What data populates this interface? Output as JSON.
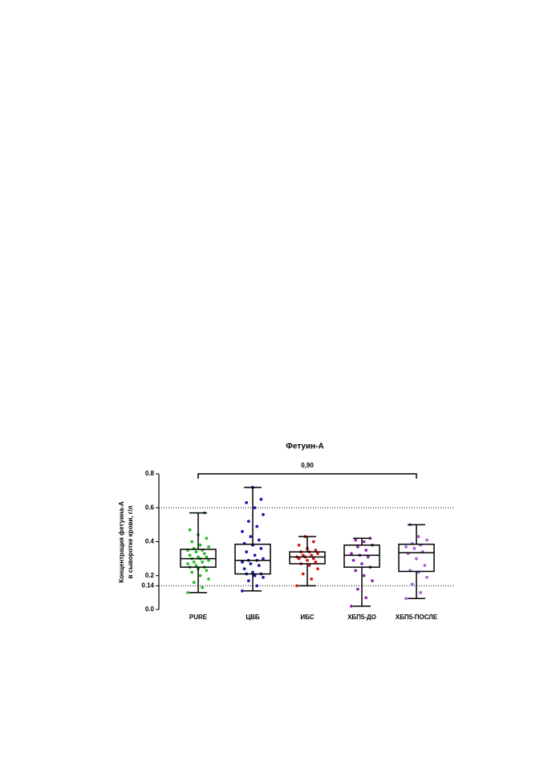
{
  "chart_data": {
    "type": "box",
    "title": "Фетуин-А",
    "y_label": [
      "Концентрация фетуина-А",
      "в сыворотке крови, г/л"
    ],
    "categories": [
      "PURE",
      "ЦВБ",
      "ИБС",
      "ХБП5-ДО",
      "ХБП5-ПОСЛЕ"
    ],
    "boxes": [
      {
        "color": "#2db82d",
        "min": 0.1,
        "q1": 0.25,
        "median": 0.3,
        "q3": 0.355,
        "max": 0.57,
        "points": [
          0.1,
          0.13,
          0.16,
          0.18,
          0.2,
          0.22,
          0.23,
          0.24,
          0.25,
          0.25,
          0.26,
          0.27,
          0.28,
          0.28,
          0.29,
          0.3,
          0.3,
          0.31,
          0.31,
          0.32,
          0.33,
          0.34,
          0.35,
          0.35,
          0.36,
          0.37,
          0.38,
          0.4,
          0.42,
          0.44,
          0.47,
          0.57
        ]
      },
      {
        "color": "#1a1aa8",
        "min": 0.11,
        "q1": 0.21,
        "median": 0.29,
        "q3": 0.385,
        "max": 0.72,
        "points": [
          0.11,
          0.14,
          0.17,
          0.19,
          0.2,
          0.21,
          0.21,
          0.22,
          0.24,
          0.26,
          0.27,
          0.28,
          0.29,
          0.29,
          0.3,
          0.32,
          0.34,
          0.36,
          0.38,
          0.39,
          0.41,
          0.43,
          0.46,
          0.49,
          0.52,
          0.56,
          0.6,
          0.63,
          0.65,
          0.72
        ]
      },
      {
        "color": "#d61a1a",
        "min": 0.14,
        "q1": 0.27,
        "median": 0.31,
        "q3": 0.34,
        "max": 0.43,
        "points": [
          0.14,
          0.18,
          0.21,
          0.24,
          0.26,
          0.27,
          0.28,
          0.29,
          0.3,
          0.3,
          0.31,
          0.31,
          0.32,
          0.32,
          0.33,
          0.34,
          0.34,
          0.35,
          0.36,
          0.38,
          0.4,
          0.43
        ]
      },
      {
        "color": "#8b2aa8",
        "min": 0.02,
        "q1": 0.25,
        "median": 0.32,
        "q3": 0.38,
        "max": 0.42,
        "points": [
          0.02,
          0.07,
          0.12,
          0.17,
          0.2,
          0.23,
          0.25,
          0.27,
          0.29,
          0.31,
          0.32,
          0.33,
          0.35,
          0.37,
          0.38,
          0.4,
          0.41,
          0.42
        ]
      },
      {
        "color": "#b060d8",
        "min": 0.065,
        "q1": 0.225,
        "median": 0.335,
        "q3": 0.385,
        "max": 0.5,
        "points": [
          0.065,
          0.1,
          0.15,
          0.19,
          0.22,
          0.23,
          0.26,
          0.3,
          0.33,
          0.34,
          0.36,
          0.37,
          0.38,
          0.39,
          0.41,
          0.43,
          0.5
        ]
      }
    ],
    "ylim": [
      0,
      0.8
    ],
    "yticks": [
      {
        "value": 0,
        "label": "0.0"
      },
      0.14,
      0.2,
      0.4,
      0.6,
      0.8
    ],
    "hlines": [
      0.6,
      0.14
    ],
    "bracket": {
      "from": "PURE",
      "to": "ХБП5-ПОСЛЕ",
      "label": "0,90"
    }
  }
}
